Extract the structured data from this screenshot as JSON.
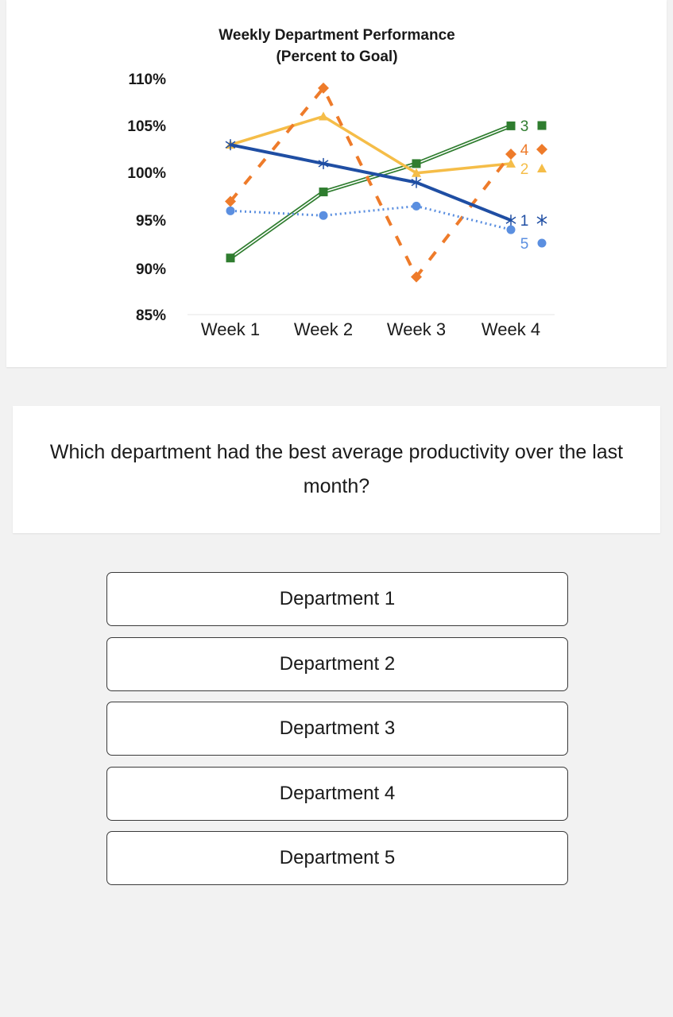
{
  "chart_data": {
    "type": "line",
    "title": "Weekly Department Performance",
    "subtitle": "(Percent to Goal)",
    "categories": [
      "Week 1",
      "Week 2",
      "Week 3",
      "Week 4"
    ],
    "y_ticks": [
      "110%",
      "105%",
      "100%",
      "95%",
      "90%",
      "85%"
    ],
    "ylim": [
      85,
      110
    ],
    "grid": false,
    "series": [
      {
        "name": "1",
        "marker": "✕",
        "color": "#1f4ea3",
        "style": "solid-thick",
        "values": [
          103,
          101,
          99,
          95
        ]
      },
      {
        "name": "2",
        "marker": "▲",
        "color": "#f5bd48",
        "style": "solid",
        "values": [
          103,
          106,
          100,
          101
        ]
      },
      {
        "name": "3",
        "marker": "■",
        "color": "#2f7d2f",
        "style": "double",
        "values": [
          91,
          98,
          101,
          105
        ]
      },
      {
        "name": "4",
        "marker": "◆",
        "color": "#ee7b2a",
        "style": "dashed",
        "values": [
          97,
          109,
          89,
          102
        ]
      },
      {
        "name": "5",
        "marker": "●",
        "color": "#5b8fe0",
        "style": "dotted",
        "values": [
          96,
          95.5,
          96.5,
          94
        ]
      }
    ]
  },
  "question": {
    "text": "Which department had the best average productivity over the last month?"
  },
  "options": [
    {
      "label": "Department 1"
    },
    {
      "label": "Department 2"
    },
    {
      "label": "Department 3"
    },
    {
      "label": "Department 4"
    },
    {
      "label": "Department 5"
    }
  ]
}
